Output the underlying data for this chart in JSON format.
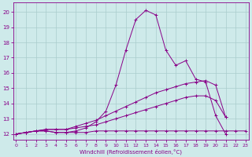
{
  "xlabel": "Windchill (Refroidissement éolien,°C)",
  "bg_color": "#ceeaea",
  "grid_color": "#aacccc",
  "line_color": "#880088",
  "x_ticks": [
    0,
    1,
    2,
    3,
    4,
    5,
    6,
    7,
    8,
    9,
    10,
    11,
    12,
    13,
    14,
    15,
    16,
    17,
    18,
    19,
    20,
    21,
    22,
    23
  ],
  "y_ticks": [
    12,
    13,
    14,
    15,
    16,
    17,
    18,
    19,
    20
  ],
  "ylim": [
    11.6,
    20.6
  ],
  "xlim": [
    -0.3,
    23.3
  ],
  "s1_x": [
    0,
    1,
    2,
    3,
    4,
    5,
    6,
    7,
    8,
    9,
    10,
    11,
    12,
    13,
    14,
    15,
    16,
    17,
    18,
    19,
    20,
    21,
    22,
    23
  ],
  "s1_y": [
    12.0,
    12.1,
    12.2,
    12.2,
    12.1,
    12.1,
    12.1,
    12.1,
    12.2,
    12.2,
    12.2,
    12.2,
    12.2,
    12.2,
    12.2,
    12.2,
    12.2,
    12.2,
    12.2,
    12.2,
    12.2,
    12.2,
    12.2,
    12.2
  ],
  "s2_x": [
    0,
    1,
    2,
    3,
    4,
    5,
    6,
    7,
    8,
    9,
    10,
    11,
    12,
    13,
    14,
    15,
    16,
    17,
    18,
    19,
    20,
    21
  ],
  "s2_y": [
    12.0,
    12.1,
    12.2,
    12.3,
    12.3,
    12.3,
    12.4,
    12.5,
    12.6,
    12.8,
    13.0,
    13.2,
    13.4,
    13.6,
    13.8,
    14.0,
    14.2,
    14.4,
    14.5,
    14.5,
    14.2,
    13.1
  ],
  "s3_x": [
    0,
    1,
    2,
    3,
    4,
    5,
    6,
    7,
    8,
    9,
    10,
    11,
    12,
    13,
    14,
    15,
    16,
    17,
    18,
    19,
    20,
    21
  ],
  "s3_y": [
    12.0,
    12.1,
    12.2,
    12.3,
    12.3,
    12.3,
    12.5,
    12.7,
    12.9,
    13.2,
    13.5,
    13.8,
    14.1,
    14.4,
    14.7,
    14.9,
    15.1,
    15.3,
    15.4,
    15.5,
    15.2,
    13.1
  ],
  "s4_x": [
    0,
    1,
    2,
    3,
    4,
    5,
    6,
    7,
    8,
    9,
    10,
    11,
    12,
    13,
    14,
    15,
    16,
    17,
    18,
    19,
    20,
    21
  ],
  "s4_y": [
    12.0,
    12.1,
    12.2,
    12.2,
    12.1,
    12.1,
    12.2,
    12.4,
    12.8,
    13.5,
    15.2,
    17.5,
    19.5,
    20.1,
    19.8,
    17.5,
    16.5,
    16.8,
    15.6,
    15.4,
    13.2,
    12.0
  ]
}
